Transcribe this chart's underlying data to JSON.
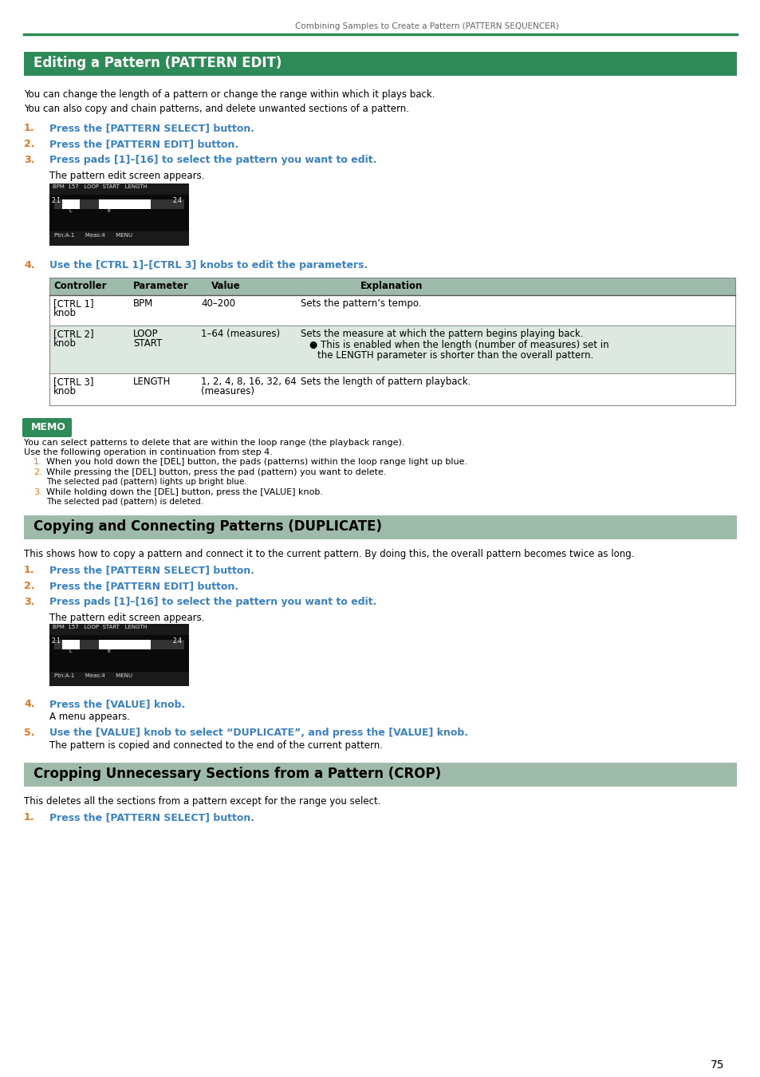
{
  "page_header": "Combining Samples to Create a Pattern (PATTERN SEQUENCER)",
  "header_line_color": "#2e8b57",
  "background_color": "#ffffff",
  "text_color": "#000000",
  "section1_title": "Editing a Pattern (PATTERN EDIT)",
  "section1_bg": "#2e8b57",
  "section1_text_color": "#ffffff",
  "section2_title": "Copying and Connecting Patterns (DUPLICATE)",
  "section2_bg": "#9dbaaa",
  "section2_text_color": "#000000",
  "section3_title": "Cropping Unnecessary Sections from a Pattern (CROP)",
  "section3_bg": "#9dbaaa",
  "section3_text_color": "#000000",
  "blue_color": "#3b82c4",
  "orange_color": "#e07820",
  "table_header_bg": "#9dbaaa",
  "table_row1_bg": "#ffffff",
  "table_row2_bg": "#dce8e0",
  "table_row3_bg": "#ffffff",
  "memo_bg": "#2e8b57",
  "page_number": "75",
  "body_intro1": "You can change the length of a pattern or change the range within which it plays back.",
  "body_intro2": "You can also copy and chain patterns, and delete unwanted sections of a pattern.",
  "step1_1": "Press the [PATTERN SELECT] button.",
  "step1_2": "Press the [PATTERN EDIT] button.",
  "step1_3": "Press pads [1]–[16] to select the pattern you want to edit.",
  "step1_3_sub": "The pattern edit screen appears.",
  "step1_4": "Use the [CTRL 1]–[CTRL 3] knobs to edit the parameters.",
  "table_headers": [
    "Controller",
    "Parameter",
    "Value",
    "Explanation"
  ],
  "memo_title": "MEMO",
  "memo_line1": "You can select patterns to delete that are within the loop range (the playback range).",
  "memo_line2": "Use the following operation in continuation from step 4.",
  "memo_step1": "When you hold down the [DEL] button, the pads (patterns) within the loop range light up blue.",
  "memo_step2a": "While pressing the [DEL] button, press the pad (pattern) you want to delete.",
  "memo_step2b": "The selected pad (pattern) lights up bright blue.",
  "memo_step3a": "While holding down the [DEL] button, press the [VALUE] knob.",
  "memo_step3b": "The selected pad (pattern) is deleted.",
  "dup_intro": "This shows how to copy a pattern and connect it to the current pattern. By doing this, the overall pattern becomes twice as long.",
  "dup_step1": "Press the [PATTERN SELECT] button.",
  "dup_step2": "Press the [PATTERN EDIT] button.",
  "dup_step3": "Press pads [1]–[16] to select the pattern you want to edit.",
  "dup_step3_sub": "The pattern edit screen appears.",
  "dup_step4": "Press the [VALUE] knob.",
  "dup_step4_sub": "A menu appears.",
  "dup_step5": "Use the [VALUE] knob to select “DUPLICATE”, and press the [VALUE] knob.",
  "dup_step5_sub": "The pattern is copied and connected to the end of the current pattern.",
  "crop_intro": "This deletes all the sections from a pattern except for the range you select.",
  "crop_step1": "Press the [PATTERN SELECT] button."
}
